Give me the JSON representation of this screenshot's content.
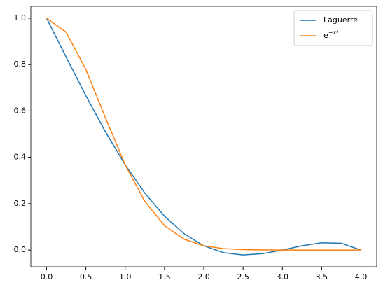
{
  "chart_data": {
    "type": "line",
    "x": [
      0,
      0.25,
      0.5,
      0.75,
      1,
      1.25,
      1.5,
      1.75,
      2,
      2.25,
      2.5,
      2.75,
      3,
      3.25,
      3.5,
      3.75,
      4
    ],
    "series": [
      {
        "name": "Laguerre",
        "color": "#1f77b4",
        "values": [
          1,
          0.8318,
          0.6658,
          0.5093,
          0.3679,
          0.2459,
          0.1462,
          0.0704,
          0.0183,
          -0.0112,
          -0.0211,
          -0.0155,
          0.0001,
          0.0186,
          0.0315,
          0.0291,
          0
        ]
      },
      {
        "name": "e−x²",
        "color": "#ff7f0e",
        "values": [
          1,
          0.9394,
          0.7788,
          0.5698,
          0.3679,
          0.2096,
          0.1054,
          0.0468,
          0.0183,
          0.0063,
          0.0019,
          0.0005,
          0.0001,
          0,
          0,
          0,
          0
        ]
      }
    ],
    "xlim": [
      -0.2,
      4.2
    ],
    "ylim": [
      -0.072,
      1.051
    ],
    "xticks": [
      {
        "value": 0,
        "label": "0.0"
      },
      {
        "value": 0.5,
        "label": "0.5"
      },
      {
        "value": 1,
        "label": "1.0"
      },
      {
        "value": 1.5,
        "label": "1.5"
      },
      {
        "value": 2,
        "label": "2.0"
      },
      {
        "value": 2.5,
        "label": "2.5"
      },
      {
        "value": 3,
        "label": "3.0"
      },
      {
        "value": 3.5,
        "label": "3.5"
      },
      {
        "value": 4,
        "label": "4.0"
      }
    ],
    "yticks": [
      {
        "value": 0,
        "label": "0.0"
      },
      {
        "value": 0.2,
        "label": "0.2"
      },
      {
        "value": 0.4,
        "label": "0.4"
      },
      {
        "value": 0.6,
        "label": "0.6"
      },
      {
        "value": 0.8,
        "label": "0.8"
      },
      {
        "value": 1,
        "label": "1.0"
      }
    ],
    "legend": "upper right"
  }
}
